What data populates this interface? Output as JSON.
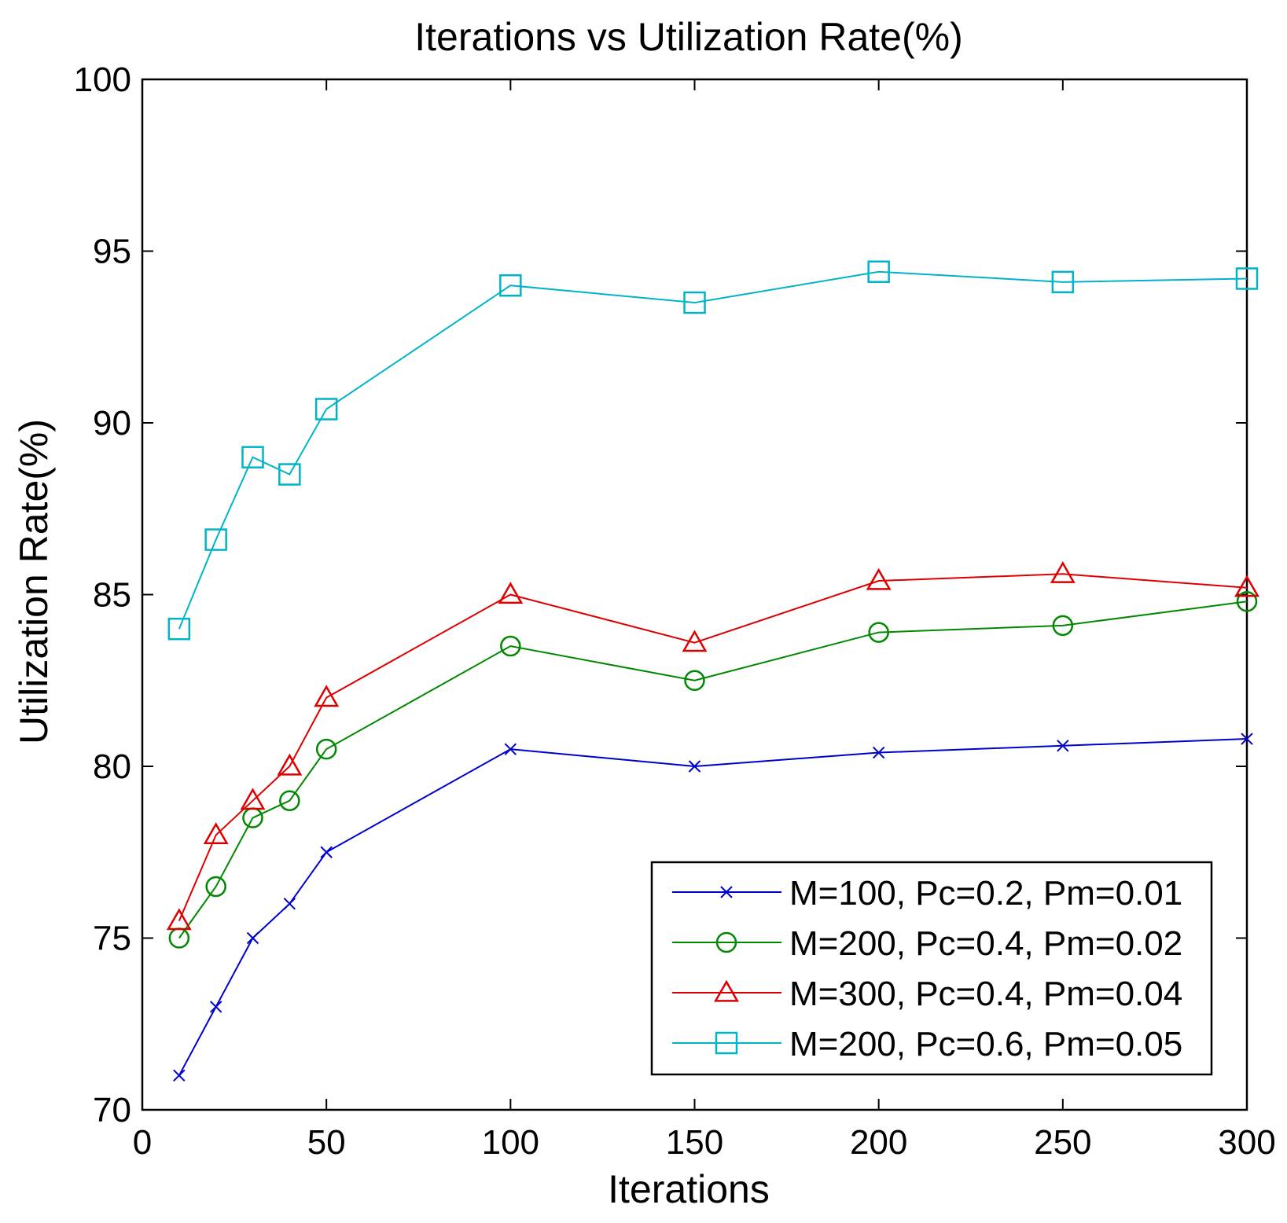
{
  "chart_data": {
    "type": "line",
    "title": "Iterations vs  Utilization Rate(%)",
    "xlabel": "Iterations",
    "ylabel": "Utilization Rate(%)",
    "xlim": [
      0,
      300
    ],
    "ylim": [
      70,
      100
    ],
    "xticks": [
      0,
      50,
      100,
      150,
      200,
      250,
      300
    ],
    "yticks": [
      70,
      75,
      80,
      85,
      90,
      95,
      100
    ],
    "x": [
      10,
      20,
      30,
      40,
      50,
      100,
      150,
      200,
      250,
      300
    ],
    "legend_position": "lower-right",
    "grid": false,
    "series": [
      {
        "name": "M=100, Pc=0.2, Pm=0.01",
        "color": "#0000cc",
        "marker": "x",
        "values": [
          71,
          73,
          75,
          76,
          77.5,
          80.5,
          80,
          80.4,
          80.6,
          80.8
        ]
      },
      {
        "name": "M=200, Pc=0.4, Pm=0.02",
        "color": "#008800",
        "marker": "circle",
        "values": [
          75,
          76.5,
          78.5,
          79,
          80.5,
          83.5,
          82.5,
          83.9,
          84.1,
          84.8
        ]
      },
      {
        "name": "M=300, Pc=0.4, Pm=0.04",
        "color": "#dd0000",
        "marker": "triangle",
        "values": [
          75.5,
          78,
          79,
          80,
          82,
          85,
          83.6,
          85.4,
          85.6,
          85.2
        ]
      },
      {
        "name": "M=200, Pc=0.6, Pm=0.05",
        "color": "#00b4c8",
        "marker": "square",
        "values": [
          84,
          86.6,
          89,
          88.5,
          90.4,
          94,
          93.5,
          94.4,
          94.1,
          94.2
        ]
      }
    ]
  }
}
